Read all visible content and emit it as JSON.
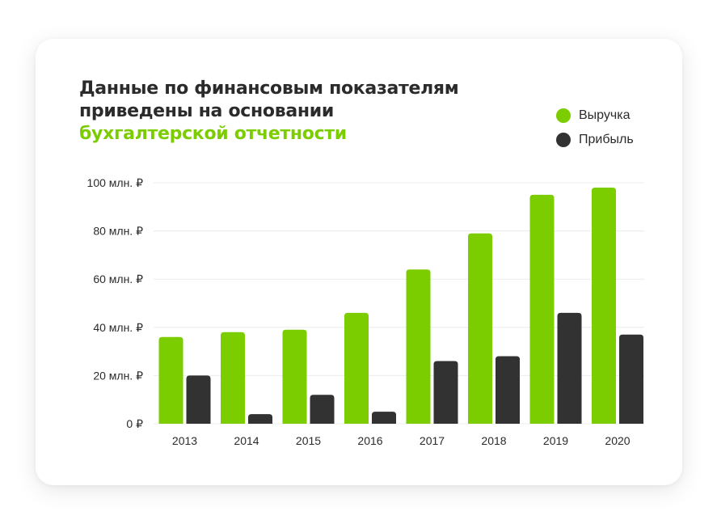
{
  "title": {
    "line1": "Данные по финансовым показателям",
    "line2": "приведены на основании",
    "line3": "бухгалтерской отчетности"
  },
  "colors": {
    "revenue": "#7ccd00",
    "profit": "#323232",
    "accent": "#7ccd00"
  },
  "chart_data": {
    "type": "bar",
    "categories": [
      "2013",
      "2014",
      "2015",
      "2016",
      "2017",
      "2018",
      "2019",
      "2020"
    ],
    "series": [
      {
        "name": "Выручка",
        "values": [
          36,
          38,
          39,
          46,
          64,
          79,
          95,
          98
        ]
      },
      {
        "name": "Прибыль",
        "values": [
          20,
          4,
          12,
          5,
          26,
          28,
          46,
          37
        ]
      }
    ],
    "ylim": [
      0,
      100
    ],
    "yticks": [
      {
        "value": 0,
        "label": "0 ₽"
      },
      {
        "value": 20,
        "label": "20 млн. ₽"
      },
      {
        "value": 40,
        "label": "40 млн. ₽"
      },
      {
        "value": 60,
        "label": "60 млн. ₽"
      },
      {
        "value": 80,
        "label": "80 млн. ₽"
      },
      {
        "value": 100,
        "label": "100 млн. ₽"
      }
    ],
    "grid": true,
    "legend_position": "top-right"
  }
}
